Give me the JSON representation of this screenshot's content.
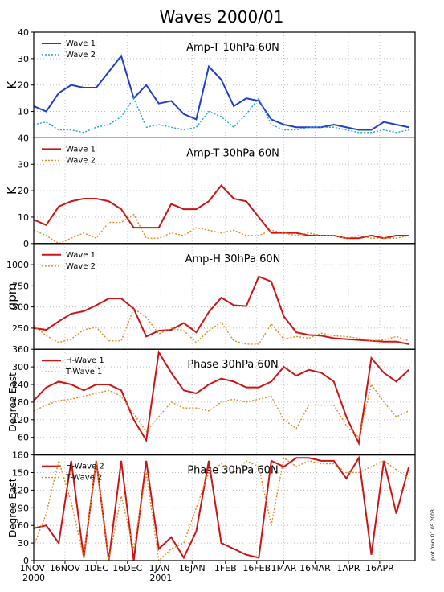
{
  "title": "Waves 2000/01",
  "footnote": "plot from 01.05.2003",
  "chart_data": [
    {
      "type": "line",
      "title": "Amp-T 10hPa 60N",
      "ylabel": "K",
      "legend": "upper left",
      "grid": true,
      "x": [
        0,
        6,
        12,
        18,
        24,
        30,
        36,
        42,
        48,
        54,
        60,
        66,
        72,
        78,
        84,
        90,
        96,
        102,
        108,
        114,
        120,
        126,
        132,
        138,
        144,
        150,
        156,
        162,
        168,
        174,
        180
      ],
      "xlim": [
        0,
        183
      ],
      "ylim": [
        0,
        40
      ],
      "yticks": [
        10,
        20,
        30,
        40
      ],
      "series": [
        {
          "name": "Wave 1",
          "color": "#1f3fc8",
          "style": "solid",
          "values": [
            12,
            10,
            17,
            20,
            19,
            19,
            25,
            31,
            15,
            20,
            13,
            14,
            9,
            7,
            27,
            22,
            12,
            15,
            14,
            7,
            5,
            4,
            4,
            4,
            5,
            4,
            3,
            3,
            6,
            5,
            4
          ]
        },
        {
          "name": "Wave 2",
          "color": "#1aa3d6",
          "style": "dotted",
          "values": [
            5,
            6,
            3,
            3,
            2,
            4,
            5,
            8,
            15,
            4,
            5,
            4,
            3,
            4,
            10,
            8,
            4,
            9,
            15,
            5,
            3,
            3,
            4,
            4,
            4,
            3,
            2,
            2,
            3,
            2,
            3
          ]
        }
      ]
    },
    {
      "type": "line",
      "title": "Amp-T 30hPa 60N",
      "ylabel": "K",
      "legend": "upper left",
      "grid": true,
      "x": [
        0,
        6,
        12,
        18,
        24,
        30,
        36,
        42,
        48,
        54,
        60,
        66,
        72,
        78,
        84,
        90,
        96,
        102,
        108,
        114,
        120,
        126,
        132,
        138,
        144,
        150,
        156,
        162,
        168,
        174,
        180
      ],
      "xlim": [
        0,
        183
      ],
      "ylim": [
        0,
        40
      ],
      "yticks": [
        0,
        10,
        20,
        30,
        40
      ],
      "series": [
        {
          "name": "Wave 1",
          "color": "#cc1414",
          "style": "solid",
          "values": [
            9,
            7,
            14,
            16,
            17,
            17,
            16,
            13,
            6,
            6,
            6,
            15,
            13,
            13,
            16,
            22,
            17,
            16,
            10,
            4,
            4,
            4,
            3,
            3,
            3,
            2,
            2,
            3,
            2,
            3,
            3
          ]
        },
        {
          "name": "Wave 2",
          "color": "#e08a20",
          "style": "dotted",
          "values": [
            5,
            3,
            0,
            2,
            4,
            2,
            8,
            8,
            11,
            2,
            2,
            4,
            3,
            6,
            5,
            4,
            5,
            3,
            3,
            5,
            4,
            3,
            4,
            3,
            3,
            2,
            3,
            2,
            2,
            2,
            3
          ]
        }
      ]
    },
    {
      "type": "line",
      "title": "Amp-H 30hPa 60N",
      "ylabel": "gpm",
      "legend": "upper left",
      "grid": true,
      "x": [
        0,
        6,
        12,
        18,
        24,
        30,
        36,
        42,
        48,
        54,
        60,
        66,
        72,
        78,
        84,
        90,
        96,
        102,
        108,
        114,
        120,
        126,
        132,
        138,
        144,
        150,
        156,
        162,
        168,
        174,
        180
      ],
      "xlim": [
        0,
        183
      ],
      "ylim": [
        0,
        1250
      ],
      "yticks": [
        250,
        500,
        750,
        1000
      ],
      "series": [
        {
          "name": "Wave 1",
          "color": "#cc1414",
          "style": "solid",
          "values": [
            250,
            230,
            330,
            420,
            450,
            520,
            600,
            600,
            480,
            150,
            220,
            230,
            310,
            200,
            440,
            610,
            520,
            510,
            860,
            800,
            390,
            200,
            170,
            160,
            130,
            120,
            110,
            100,
            90,
            90,
            60
          ]
        },
        {
          "name": "Wave 2",
          "color": "#e08a20",
          "style": "dotted",
          "values": [
            280,
            160,
            80,
            120,
            230,
            260,
            100,
            100,
            480,
            380,
            180,
            250,
            220,
            80,
            220,
            320,
            100,
            60,
            60,
            300,
            120,
            150,
            130,
            190,
            160,
            150,
            130,
            100,
            110,
            150,
            100
          ]
        }
      ]
    },
    {
      "type": "line",
      "title": "Phase 30hPa 60N",
      "ylabel": "Degree East",
      "legend": "upper left",
      "grid": true,
      "x": [
        0,
        6,
        12,
        18,
        24,
        30,
        36,
        42,
        48,
        54,
        60,
        66,
        72,
        78,
        84,
        90,
        96,
        102,
        108,
        114,
        120,
        126,
        132,
        138,
        144,
        150,
        156,
        162,
        168,
        174,
        180
      ],
      "xlim": [
        0,
        183
      ],
      "ylim": [
        0,
        360
      ],
      "yticks": [
        60,
        120,
        180,
        240,
        300,
        360
      ],
      "series": [
        {
          "name": "H-Wave 1",
          "color": "#cc1414",
          "style": "solid",
          "values": [
            185,
            230,
            250,
            240,
            220,
            240,
            240,
            220,
            120,
            50,
            350,
            280,
            220,
            210,
            240,
            260,
            250,
            230,
            230,
            250,
            300,
            270,
            290,
            280,
            250,
            130,
            40,
            330,
            280,
            250,
            290
          ]
        },
        {
          "name": "T-Wave 1",
          "color": "#e08a20",
          "style": "dotted",
          "values": [
            150,
            170,
            185,
            190,
            200,
            210,
            220,
            200,
            140,
            80,
            130,
            180,
            160,
            160,
            150,
            180,
            190,
            180,
            190,
            200,
            120,
            90,
            170,
            170,
            170,
            100,
            60,
            240,
            180,
            130,
            150
          ]
        }
      ]
    },
    {
      "type": "line",
      "title": "Phase 30hPa 60N",
      "ylabel": "Degree East",
      "legend": "upper left",
      "grid": true,
      "x": [
        0,
        6,
        12,
        18,
        24,
        30,
        36,
        42,
        48,
        54,
        60,
        66,
        72,
        78,
        84,
        90,
        96,
        102,
        108,
        114,
        120,
        126,
        132,
        138,
        144,
        150,
        156,
        162,
        168,
        174,
        180
      ],
      "xlim": [
        0,
        183
      ],
      "ylim": [
        0,
        180
      ],
      "yticks": [
        0,
        30,
        60,
        90,
        120,
        150,
        180
      ],
      "xticks": [
        {
          "value": 0,
          "label": "1NOV 2000"
        },
        {
          "value": 15,
          "label": "16NOV"
        },
        {
          "value": 30,
          "label": "1DEC"
        },
        {
          "value": 45,
          "label": "16DEC"
        },
        {
          "value": 61,
          "label": "1JAN 2001"
        },
        {
          "value": 76,
          "label": "16JAN"
        },
        {
          "value": 92,
          "label": "1FEB"
        },
        {
          "value": 107,
          "label": "16FEB"
        },
        {
          "value": 120,
          "label": "1MAR"
        },
        {
          "value": 135,
          "label": "16MAR"
        },
        {
          "value": 151,
          "label": "1APR"
        },
        {
          "value": 166,
          "label": "16APR"
        }
      ],
      "series": [
        {
          "name": "H-Wave 2",
          "color": "#cc1414",
          "style": "solid",
          "values": [
            55,
            60,
            30,
            170,
            5,
            170,
            0,
            170,
            0,
            170,
            20,
            40,
            5,
            50,
            170,
            30,
            20,
            10,
            5,
            170,
            160,
            175,
            175,
            170,
            170,
            140,
            175,
            10,
            170,
            80,
            160
          ]
        },
        {
          "name": "T-Wave 2",
          "color": "#e08a20",
          "style": "dotted",
          "values": [
            25,
            80,
            170,
            100,
            5,
            170,
            0,
            110,
            20,
            150,
            0,
            20,
            30,
            90,
            150,
            165,
            150,
            170,
            160,
            60,
            175,
            160,
            170,
            165,
            165,
            150,
            150,
            160,
            170,
            155,
            140
          ]
        }
      ]
    }
  ]
}
